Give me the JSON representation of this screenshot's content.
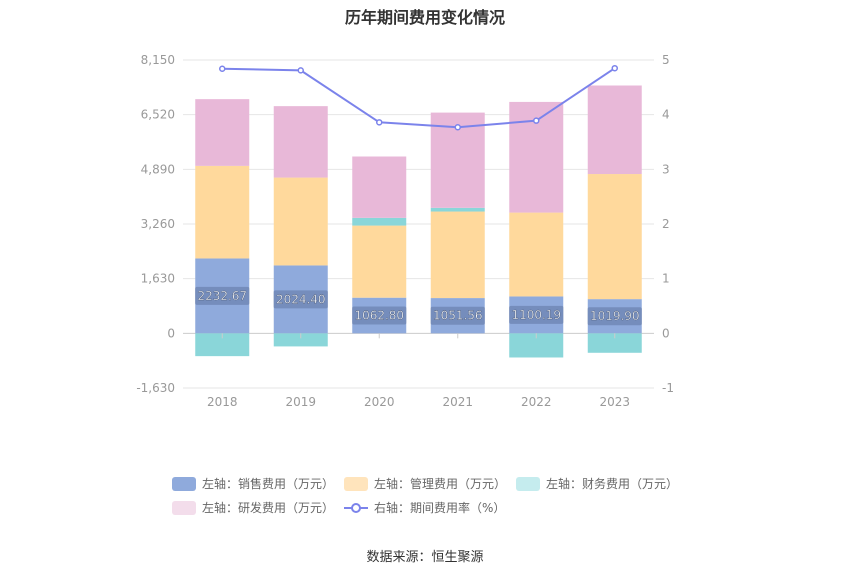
{
  "chart_data": {
    "type": "bar",
    "title": "历年期间费用变化情况",
    "categories": [
      "2018",
      "2019",
      "2020",
      "2021",
      "2022",
      "2023"
    ],
    "left_axis": {
      "ticks": [
        "8,150",
        "6,520",
        "4,890",
        "3,260",
        "1,630",
        "0",
        "-1,630"
      ],
      "ylim": [
        -1630,
        8150
      ]
    },
    "right_axis": {
      "ticks": [
        "5",
        "4",
        "3",
        "2",
        "1",
        "0",
        "-1"
      ],
      "ylim": [
        -1,
        5
      ]
    },
    "series": [
      {
        "name": "左轴：销售费用（万元）",
        "type": "bar",
        "stack": "cost",
        "color": "#8FAADC",
        "values": [
          2232.67,
          2024.4,
          1062.8,
          1051.56,
          1100.19,
          1019.9
        ],
        "labels": [
          "2232.67",
          "2024.40",
          "1062.80",
          "1051.56",
          "1100.19",
          "1019.90"
        ]
      },
      {
        "name": "左轴：管理费用（万元）",
        "type": "bar",
        "stack": "cost",
        "color": "#FFD99C",
        "values": [
          2760,
          2620,
          2150,
          2580,
          2500,
          3730
        ]
      },
      {
        "name": "左轴：财务费用（万元）",
        "type": "bar",
        "stack": "cost",
        "color": "#8AD6D9",
        "values": [
          -680,
          -390,
          230,
          110,
          -720,
          -580
        ]
      },
      {
        "name": "左轴：研发费用（万元）",
        "type": "bar",
        "stack": "cost",
        "color": "#E8B8D8",
        "values": [
          1990,
          2130,
          1830,
          2840,
          3300,
          2640
        ]
      },
      {
        "name": "右轴：期间费用率（%）",
        "type": "line",
        "axis": "right",
        "color": "#7B83EB",
        "values": [
          4.84,
          4.81,
          3.86,
          3.77,
          3.89,
          4.85
        ]
      }
    ],
    "legend_position": "bottom",
    "grid": true
  },
  "source_text": "数据来源：恒生聚源"
}
